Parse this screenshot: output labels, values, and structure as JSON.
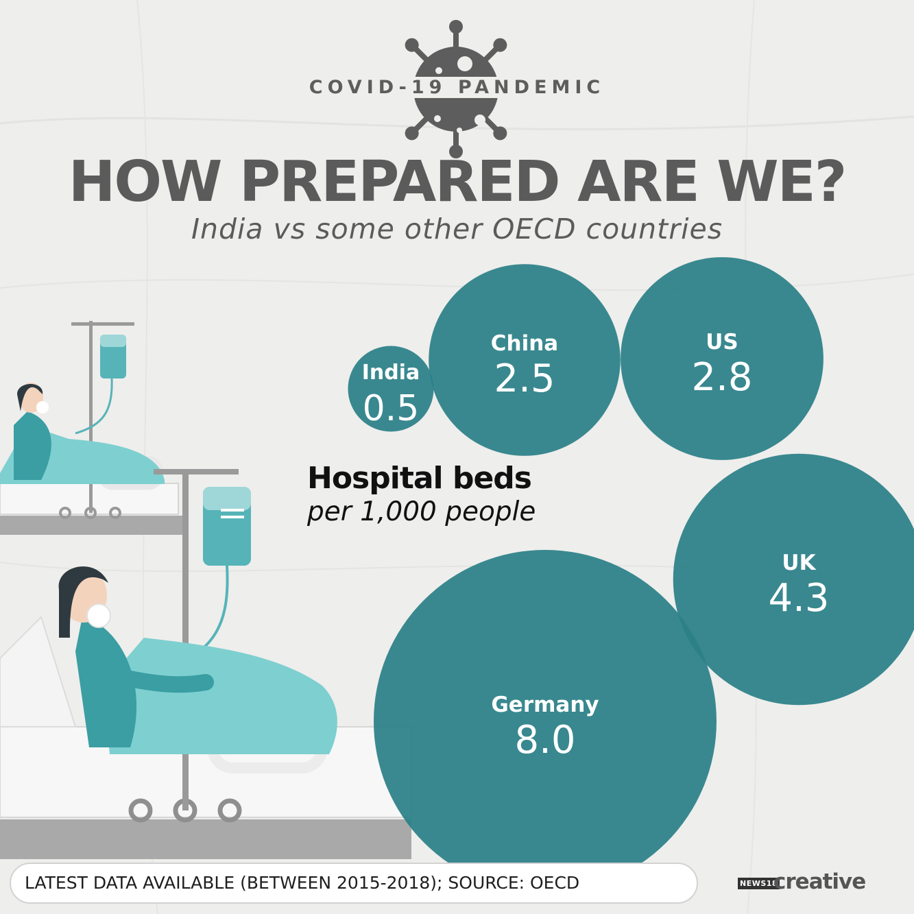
{
  "header": {
    "tag": "COVID-19 PANDEMIC",
    "title": "HOW PREPARED ARE WE?",
    "subtitle": "India vs some other OECD countries"
  },
  "colors": {
    "bubble": "#2b8088",
    "bubble_overlap": "#1f6970",
    "text_dark": "#5b5b5b",
    "background": "#eeeeec"
  },
  "icons": [
    "virus-icon",
    "hospital-bed-illustration"
  ],
  "chart_data": {
    "type": "bubble",
    "title": "Hospital beds",
    "subtitle": "per 1,000 people",
    "categories": [
      "India",
      "China",
      "US",
      "UK",
      "Germany"
    ],
    "values": [
      0.5,
      2.5,
      2.8,
      4.3,
      8.0
    ],
    "value_labels": [
      "0.5",
      "2.5",
      "2.8",
      "4.3",
      "8.0"
    ]
  },
  "footer": {
    "source": "LATEST DATA AVAILABLE (BETWEEN 2015-2018); SOURCE: OECD"
  },
  "brand": {
    "network": "NEWS18",
    "name": "creative"
  }
}
